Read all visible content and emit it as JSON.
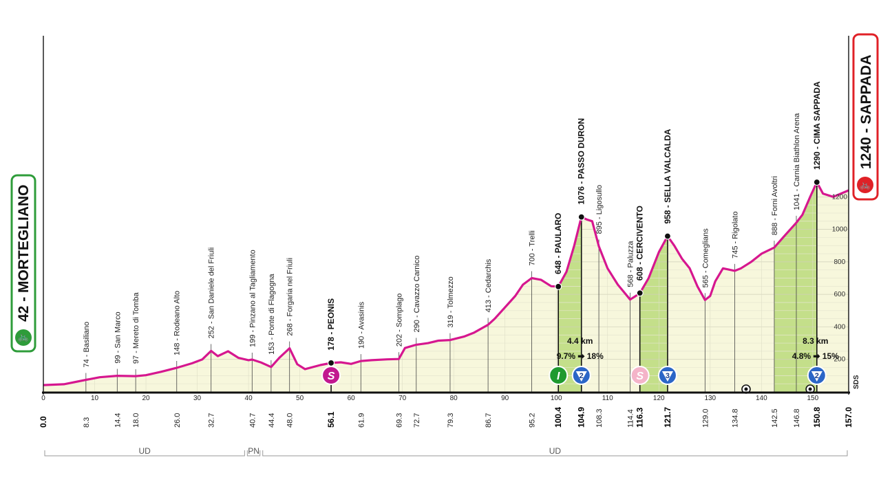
{
  "start_label": "42 - MORTEGLIANO",
  "finish_label": "1240 - SAPPADA",
  "sds_label": "SDS",
  "provinces": [
    {
      "label": "UD",
      "from": 0,
      "to": 39.5
    },
    {
      "label": "PN",
      "from": 39.5,
      "to": 42.5
    },
    {
      "label": "UD",
      "from": 42.5,
      "to": 157.0
    }
  ],
  "climb_info": [
    {
      "km": 104.9,
      "distance": "4.4 km",
      "gradient": "9.7% ➡ 18%"
    },
    {
      "km": 150.8,
      "distance": "8.3 km",
      "gradient": "4.8% ➡ 15%"
    }
  ],
  "markers": [
    {
      "km": 56.1,
      "type": "sprint",
      "label": "S",
      "color": "#c2188f"
    },
    {
      "km": 100.4,
      "type": "intermediate",
      "label": "I",
      "color": "#1f9a2f"
    },
    {
      "km": 104.9,
      "type": "gpm",
      "label": "2",
      "color": "#2b66c7"
    },
    {
      "km": 116.3,
      "type": "sprint",
      "label": "S",
      "color": "#f4b4c9"
    },
    {
      "km": 121.7,
      "type": "gpm",
      "label": "3",
      "color": "#2b66c7"
    },
    {
      "km": 150.8,
      "type": "gpm",
      "label": "2",
      "color": "#2b66c7"
    }
  ],
  "tunnels": [
    137.0,
    149.5
  ],
  "chart_data": {
    "type": "area",
    "xlim": [
      0,
      157.0
    ],
    "ylim": [
      0,
      1400
    ],
    "ytick_labels": [
      "200",
      "400",
      "600",
      "800",
      "1000",
      "1200"
    ],
    "xtick_labels": [
      "0",
      "10",
      "20",
      "30",
      "40",
      "50",
      "60",
      "70",
      "80",
      "90",
      "100",
      "110",
      "120",
      "130",
      "140",
      "150"
    ],
    "profile": [
      [
        0,
        42
      ],
      [
        4,
        47
      ],
      [
        8.3,
        74
      ],
      [
        11,
        90
      ],
      [
        14.4,
        99
      ],
      [
        18,
        97
      ],
      [
        20,
        103
      ],
      [
        23,
        124
      ],
      [
        26,
        148
      ],
      [
        29,
        176
      ],
      [
        31,
        200
      ],
      [
        32.7,
        252
      ],
      [
        34,
        220
      ],
      [
        36,
        250
      ],
      [
        38,
        210
      ],
      [
        40,
        195
      ],
      [
        40.7,
        199
      ],
      [
        42.5,
        180
      ],
      [
        44.4,
        153
      ],
      [
        46,
        210
      ],
      [
        48,
        268
      ],
      [
        49.5,
        170
      ],
      [
        51,
        140
      ],
      [
        54,
        165
      ],
      [
        56.1,
        178
      ],
      [
        58,
        182
      ],
      [
        60,
        172
      ],
      [
        61.9,
        190
      ],
      [
        64,
        195
      ],
      [
        67,
        200
      ],
      [
        69.3,
        202
      ],
      [
        70.5,
        270
      ],
      [
        72.7,
        290
      ],
      [
        75,
        300
      ],
      [
        77,
        315
      ],
      [
        79.3,
        319
      ],
      [
        82,
        340
      ],
      [
        84,
        365
      ],
      [
        86.7,
        413
      ],
      [
        88,
        450
      ],
      [
        90,
        520
      ],
      [
        92,
        590
      ],
      [
        93.5,
        660
      ],
      [
        95.2,
        700
      ],
      [
        97,
        690
      ],
      [
        99,
        650
      ],
      [
        100.4,
        648
      ],
      [
        102,
        740
      ],
      [
        103.5,
        900
      ],
      [
        104.9,
        1076
      ],
      [
        106,
        1060
      ],
      [
        107,
        1050
      ],
      [
        108.3,
        895
      ],
      [
        110,
        760
      ],
      [
        112,
        660
      ],
      [
        114.4,
        568
      ],
      [
        115.5,
        590
      ],
      [
        116.3,
        608
      ],
      [
        118,
        700
      ],
      [
        120,
        860
      ],
      [
        121.7,
        958
      ],
      [
        123,
        900
      ],
      [
        124.5,
        820
      ],
      [
        126,
        760
      ],
      [
        127.5,
        650
      ],
      [
        129,
        565
      ],
      [
        130,
        590
      ],
      [
        131,
        680
      ],
      [
        132.5,
        760
      ],
      [
        134.8,
        745
      ],
      [
        136,
        760
      ],
      [
        138,
        800
      ],
      [
        140,
        850
      ],
      [
        142.5,
        888
      ],
      [
        144.5,
        960
      ],
      [
        146.8,
        1041
      ],
      [
        148,
        1090
      ],
      [
        149.5,
        1200
      ],
      [
        150.8,
        1290
      ],
      [
        152,
        1220
      ],
      [
        154,
        1200
      ],
      [
        155.5,
        1220
      ],
      [
        157,
        1240
      ]
    ],
    "shaded_climbs": [
      [
        100.4,
        104.9
      ],
      [
        116.3,
        121.7
      ],
      [
        142.5,
        150.8
      ]
    ],
    "waypoints": [
      {
        "km": 8.3,
        "km_label": "8.3",
        "label": "74 - Basiliano",
        "bold": false
      },
      {
        "km": 14.4,
        "km_label": "14.4",
        "label": "99 - San Marco",
        "bold": false
      },
      {
        "km": 18.0,
        "km_label": "18.0",
        "label": "97 - Mereto di Tomba",
        "bold": false
      },
      {
        "km": 26.0,
        "km_label": "26.0",
        "label": "148 - Rodeano Alto",
        "bold": false
      },
      {
        "km": 32.7,
        "km_label": "32.7",
        "label": "252 - San Daniele del Friuli",
        "bold": false
      },
      {
        "km": 40.7,
        "km_label": "40.7",
        "label": "199 - Pinzano al Tagliamento",
        "bold": false
      },
      {
        "km": 44.4,
        "km_label": "44.4",
        "label": "153 - Ponte di Flagogna",
        "bold": false
      },
      {
        "km": 48.0,
        "km_label": "48.0",
        "label": "268 - Forgaria nel Friuli",
        "bold": false
      },
      {
        "km": 56.1,
        "km_label": "56.1",
        "label": "178 - PEONIS",
        "bold": true
      },
      {
        "km": 61.9,
        "km_label": "61.9",
        "label": "190 - Avasinis",
        "bold": false
      },
      {
        "km": 69.3,
        "km_label": "69.3",
        "label": "202 - Somplago",
        "bold": false
      },
      {
        "km": 72.7,
        "km_label": "72.7",
        "label": "290 - Cavazzo Carnico",
        "bold": false
      },
      {
        "km": 79.3,
        "km_label": "79.3",
        "label": "319 - Tolmezzo",
        "bold": false
      },
      {
        "km": 86.7,
        "km_label": "86.7",
        "label": "413 - Cedarchis",
        "bold": false
      },
      {
        "km": 95.2,
        "km_label": "95.2",
        "label": "700 - Trelli",
        "bold": false
      },
      {
        "km": 100.4,
        "km_label": "100.4",
        "label": "648 - PAULARO",
        "bold": true
      },
      {
        "km": 104.9,
        "km_label": "104.9",
        "label": "1076 - PASSO DURON",
        "bold": true
      },
      {
        "km": 108.3,
        "km_label": "108.3",
        "label": "895 - Ligosullo",
        "bold": false
      },
      {
        "km": 114.4,
        "km_label": "114.4",
        "label": "568 - Paluzza",
        "bold": false
      },
      {
        "km": 116.3,
        "km_label": "116.3",
        "label": "608 - CERCIVENTO",
        "bold": true
      },
      {
        "km": 121.7,
        "km_label": "121.7",
        "label": "958 - SELLA VALCALDA",
        "bold": true
      },
      {
        "km": 129.0,
        "km_label": "129.0",
        "label": "565 - Comeglians",
        "bold": false
      },
      {
        "km": 134.8,
        "km_label": "134.8",
        "label": "745 - Rigolato",
        "bold": false
      },
      {
        "km": 142.5,
        "km_label": "142.5",
        "label": "888 - Forni Avoltri",
        "bold": false
      },
      {
        "km": 146.8,
        "km_label": "146.8",
        "label": "1041 - Carnia Biathlon Arena",
        "bold": false
      },
      {
        "km": 150.8,
        "km_label": "150.8",
        "label": "1290 - CIMA SAPPADA",
        "bold": true
      }
    ],
    "start_km_label": "0.0",
    "finish_km_label": "157.0",
    "colors": {
      "profile": "#d6178f",
      "fill": "#f7f7dc",
      "climb_fill": "#c4df8a",
      "start_badge": "#2e9c3a",
      "finish_badge": "#e02127"
    }
  }
}
